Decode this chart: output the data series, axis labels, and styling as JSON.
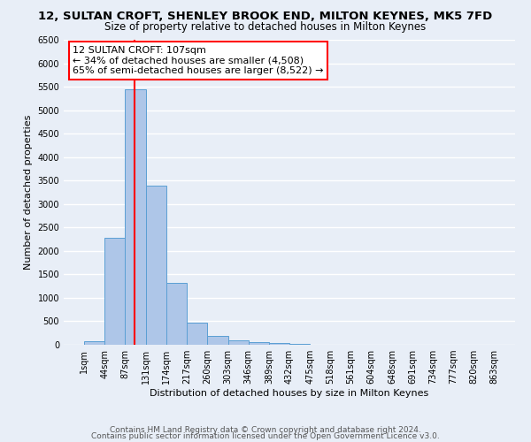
{
  "title": "12, SULTAN CROFT, SHENLEY BROOK END, MILTON KEYNES, MK5 7FD",
  "subtitle": "Size of property relative to detached houses in Milton Keynes",
  "xlabel": "Distribution of detached houses by size in Milton Keynes",
  "ylabel": "Number of detached properties",
  "bin_edges": [
    1,
    44,
    87,
    131,
    174,
    217,
    260,
    303,
    346,
    389,
    432,
    475,
    518,
    561,
    604,
    648,
    691,
    734,
    777,
    820,
    863
  ],
  "bar_heights": [
    75,
    2280,
    5450,
    3400,
    1310,
    480,
    190,
    90,
    50,
    30,
    15,
    8,
    0,
    0,
    0,
    0,
    0,
    0,
    0,
    0
  ],
  "bar_color": "#aec6e8",
  "bar_edgecolor": "#5a9fd4",
  "property_size": 107,
  "vline_color": "red",
  "annotation_line1": "12 SULTAN CROFT: 107sqm",
  "annotation_line2": "← 34% of detached houses are smaller (4,508)",
  "annotation_line3": "65% of semi-detached houses are larger (8,522) →",
  "annotation_bbox_edgecolor": "red",
  "annotation_bbox_facecolor": "white",
  "ylim": [
    0,
    6500
  ],
  "yticks": [
    0,
    500,
    1000,
    1500,
    2000,
    2500,
    3000,
    3500,
    4000,
    4500,
    5000,
    5500,
    6000,
    6500
  ],
  "footer_line1": "Contains HM Land Registry data © Crown copyright and database right 2024.",
  "footer_line2": "Contains public sector information licensed under the Open Government Licence v3.0.",
  "background_color": "#e8eef7",
  "plot_background_color": "#e8eef7",
  "grid_color": "white",
  "title_fontsize": 9.5,
  "subtitle_fontsize": 8.5,
  "axis_label_fontsize": 8,
  "tick_fontsize": 7,
  "annotation_fontsize": 8,
  "footer_fontsize": 6.5
}
